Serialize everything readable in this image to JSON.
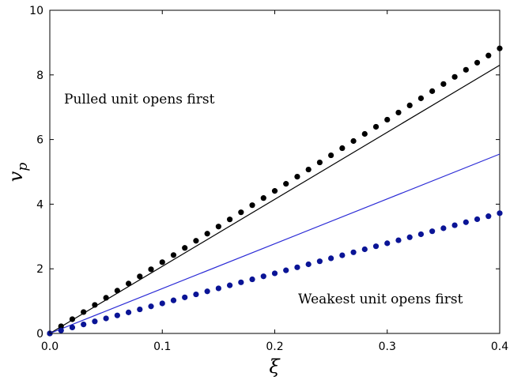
{
  "chart_data": {
    "type": "scatter",
    "title": "",
    "xlabel": "ξ",
    "ylabel": "v",
    "ylabel_subscript": "p",
    "xlim": [
      0,
      0.4
    ],
    "ylim": [
      0,
      10
    ],
    "xticks": [
      0,
      0.1,
      0.2,
      0.3,
      0.4
    ],
    "xtick_labels": [
      "0.0",
      "0.1",
      "0.2",
      "0.3",
      "0.4"
    ],
    "yticks": [
      0,
      2,
      4,
      6,
      8,
      10
    ],
    "ytick_labels": [
      "0",
      "2",
      "4",
      "6",
      "8",
      "10"
    ],
    "grid": false,
    "legend": "none",
    "annotations": [
      {
        "text": "Pulled unit opens first"
      },
      {
        "text": "Weakest unit opens first"
      }
    ],
    "series": [
      {
        "kind": "scatter",
        "color": "#000000",
        "x_start": 0,
        "x_end": 0.4,
        "count": 41,
        "y_start": 0,
        "y_end": 8.82
      },
      {
        "kind": "line",
        "color": "#000000",
        "x": [
          0,
          0.4
        ],
        "y": [
          0,
          8.3
        ]
      },
      {
        "kind": "line",
        "color": "#2b2bd6",
        "x": [
          0,
          0.4
        ],
        "y": [
          0,
          5.55
        ]
      },
      {
        "kind": "scatter",
        "color": "#0a1496",
        "x_start": 0,
        "x_end": 0.4,
        "count": 41,
        "y_start": 0,
        "y_end": 3.72
      }
    ]
  }
}
